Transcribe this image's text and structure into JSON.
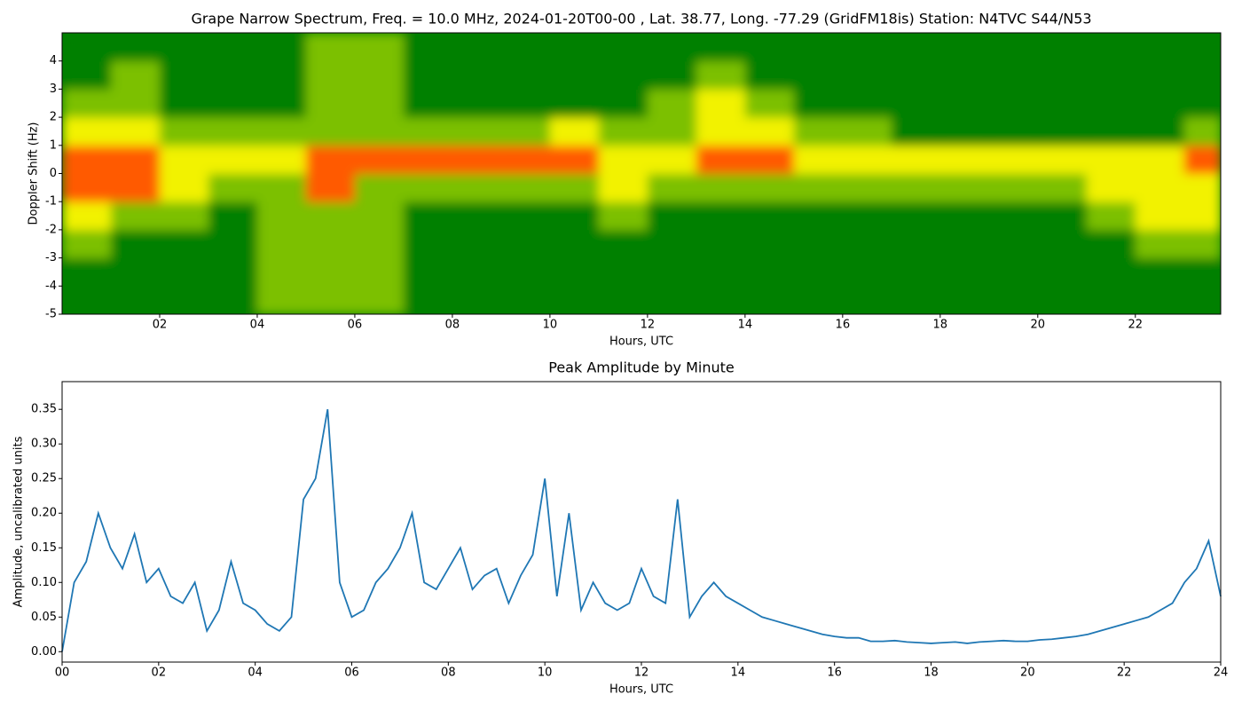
{
  "chart_data": [
    {
      "type": "heatmap",
      "title": "Grape Narrow Spectrum, Freq. = 10.0 MHz, 2024-01-20T00-00 , Lat.  38.77, Long. -77.29 (GridFM18is) Station: N4TVC S44/N53",
      "xlabel": "Hours, UTC",
      "ylabel": "Doppler Shift (Hz)",
      "xbins": [
        0,
        1,
        2,
        3,
        4,
        5,
        6,
        7,
        8,
        9,
        10,
        11,
        12,
        13,
        14,
        15,
        16,
        17,
        18,
        19,
        20,
        21,
        22,
        23,
        23.75
      ],
      "ybins": [
        -5,
        -4,
        -3,
        -2,
        -1,
        0,
        1,
        2,
        3,
        4,
        5
      ],
      "z": [
        [
          0,
          0,
          0,
          0,
          1,
          1,
          1,
          0,
          0,
          0,
          0,
          0,
          0,
          0,
          0,
          0,
          0,
          0,
          0,
          0,
          0,
          0,
          0,
          0
        ],
        [
          0,
          0,
          0,
          0,
          1,
          1,
          1,
          0,
          0,
          0,
          0,
          0,
          0,
          0,
          0,
          0,
          0,
          0,
          0,
          0,
          0,
          0,
          0,
          0
        ],
        [
          1,
          0,
          0,
          0,
          1,
          1,
          1,
          0,
          0,
          0,
          0,
          0,
          0,
          0,
          0,
          0,
          0,
          0,
          0,
          0,
          0,
          0,
          1,
          1
        ],
        [
          2,
          1,
          1,
          0,
          1,
          1,
          1,
          0,
          0,
          0,
          0,
          1,
          0,
          0,
          0,
          0,
          0,
          0,
          0,
          0,
          0,
          1,
          2,
          2
        ],
        [
          3,
          3,
          2,
          1,
          1,
          3,
          1,
          1,
          1,
          1,
          1,
          2,
          1,
          1,
          1,
          1,
          1,
          1,
          1,
          1,
          1,
          2,
          2,
          2
        ],
        [
          3,
          3,
          2,
          2,
          2,
          3,
          3,
          3,
          3,
          3,
          3,
          2,
          2,
          3,
          3,
          2,
          2,
          2,
          2,
          2,
          2,
          2,
          2,
          3
        ],
        [
          2,
          2,
          1,
          1,
          1,
          1,
          1,
          1,
          1,
          1,
          2,
          1,
          1,
          2,
          2,
          1,
          1,
          0,
          0,
          0,
          0,
          0,
          0,
          1
        ],
        [
          1,
          1,
          0,
          0,
          0,
          1,
          1,
          0,
          0,
          0,
          0,
          0,
          1,
          2,
          1,
          0,
          0,
          0,
          0,
          0,
          0,
          0,
          0,
          0
        ],
        [
          0,
          1,
          0,
          0,
          0,
          1,
          1,
          0,
          0,
          0,
          0,
          0,
          0,
          1,
          0,
          0,
          0,
          0,
          0,
          0,
          0,
          0,
          0,
          0
        ],
        [
          0,
          0,
          0,
          0,
          0,
          1,
          1,
          0,
          0,
          0,
          0,
          0,
          0,
          0,
          0,
          0,
          0,
          0,
          0,
          0,
          0,
          0,
          0,
          0
        ]
      ],
      "colorscale": [
        "#008000",
        "#7cc000",
        "#f2f200",
        "#ff5a00"
      ],
      "xlim": [
        0,
        23.75
      ],
      "ylim": [
        -5,
        5
      ],
      "xticks": [
        {
          "value": 2,
          "label": "02"
        },
        {
          "value": 4,
          "label": "04"
        },
        {
          "value": 6,
          "label": "06"
        },
        {
          "value": 8,
          "label": "08"
        },
        {
          "value": 10,
          "label": "10"
        },
        {
          "value": 12,
          "label": "12"
        },
        {
          "value": 14,
          "label": "14"
        },
        {
          "value": 16,
          "label": "16"
        },
        {
          "value": 18,
          "label": "18"
        },
        {
          "value": 20,
          "label": "20"
        },
        {
          "value": 22,
          "label": "22"
        }
      ],
      "yticks": [
        -5,
        -4,
        -3,
        -2,
        -1,
        0,
        1,
        2,
        3,
        4
      ]
    },
    {
      "type": "line",
      "title": "Peak Amplitude by Minute",
      "xlabel": "Hours, UTC",
      "ylabel": "Amplitude, uncalibrated units",
      "color": "#1f77b4",
      "x": [
        0,
        0.25,
        0.5,
        0.75,
        1,
        1.25,
        1.5,
        1.75,
        2,
        2.25,
        2.5,
        2.75,
        3,
        3.25,
        3.5,
        3.75,
        4,
        4.25,
        4.5,
        4.75,
        5,
        5.25,
        5.5,
        5.75,
        6,
        6.25,
        6.5,
        6.75,
        7,
        7.25,
        7.5,
        7.75,
        8,
        8.25,
        8.5,
        8.75,
        9,
        9.25,
        9.5,
        9.75,
        10,
        10.25,
        10.5,
        10.75,
        11,
        11.25,
        11.5,
        11.75,
        12,
        12.25,
        12.5,
        12.75,
        13,
        13.25,
        13.5,
        13.75,
        14,
        14.25,
        14.5,
        14.75,
        15,
        15.25,
        15.5,
        15.75,
        16,
        16.25,
        16.5,
        16.75,
        17,
        17.25,
        17.5,
        17.75,
        18,
        18.25,
        18.5,
        18.75,
        19,
        19.25,
        19.5,
        19.75,
        20,
        20.25,
        20.5,
        20.75,
        21,
        21.25,
        21.5,
        21.75,
        22,
        22.25,
        22.5,
        22.75,
        23,
        23.25,
        23.5,
        23.75,
        24
      ],
      "values": [
        0.0,
        0.1,
        0.13,
        0.2,
        0.15,
        0.12,
        0.17,
        0.1,
        0.12,
        0.08,
        0.07,
        0.1,
        0.03,
        0.06,
        0.13,
        0.07,
        0.06,
        0.04,
        0.03,
        0.05,
        0.22,
        0.25,
        0.35,
        0.1,
        0.05,
        0.06,
        0.1,
        0.12,
        0.15,
        0.2,
        0.1,
        0.09,
        0.12,
        0.15,
        0.09,
        0.11,
        0.12,
        0.07,
        0.11,
        0.14,
        0.25,
        0.08,
        0.2,
        0.06,
        0.1,
        0.07,
        0.06,
        0.07,
        0.12,
        0.08,
        0.07,
        0.22,
        0.05,
        0.08,
        0.1,
        0.08,
        0.07,
        0.06,
        0.05,
        0.045,
        0.04,
        0.035,
        0.03,
        0.025,
        0.022,
        0.02,
        0.02,
        0.015,
        0.015,
        0.016,
        0.014,
        0.013,
        0.012,
        0.013,
        0.014,
        0.012,
        0.014,
        0.015,
        0.016,
        0.015,
        0.015,
        0.017,
        0.018,
        0.02,
        0.022,
        0.025,
        0.03,
        0.035,
        0.04,
        0.045,
        0.05,
        0.06,
        0.07,
        0.1,
        0.12,
        0.16,
        0.08
      ],
      "xlim": [
        0,
        24
      ],
      "ylim": [
        -0.015,
        0.39
      ],
      "xticks": [
        {
          "value": 0,
          "label": "00"
        },
        {
          "value": 2,
          "label": "02"
        },
        {
          "value": 4,
          "label": "04"
        },
        {
          "value": 6,
          "label": "06"
        },
        {
          "value": 8,
          "label": "08"
        },
        {
          "value": 10,
          "label": "10"
        },
        {
          "value": 12,
          "label": "12"
        },
        {
          "value": 14,
          "label": "14"
        },
        {
          "value": 16,
          "label": "16"
        },
        {
          "value": 18,
          "label": "18"
        },
        {
          "value": 20,
          "label": "20"
        },
        {
          "value": 22,
          "label": "22"
        },
        {
          "value": 24,
          "label": "24"
        }
      ],
      "yticks": [
        {
          "value": 0,
          "label": "0.00"
        },
        0.05,
        {
          "value": 0.1,
          "label": "0.10"
        },
        0.15,
        {
          "value": 0.2,
          "label": "0.20"
        },
        0.25,
        {
          "value": 0.3,
          "label": "0.30"
        },
        0.35
      ]
    }
  ]
}
